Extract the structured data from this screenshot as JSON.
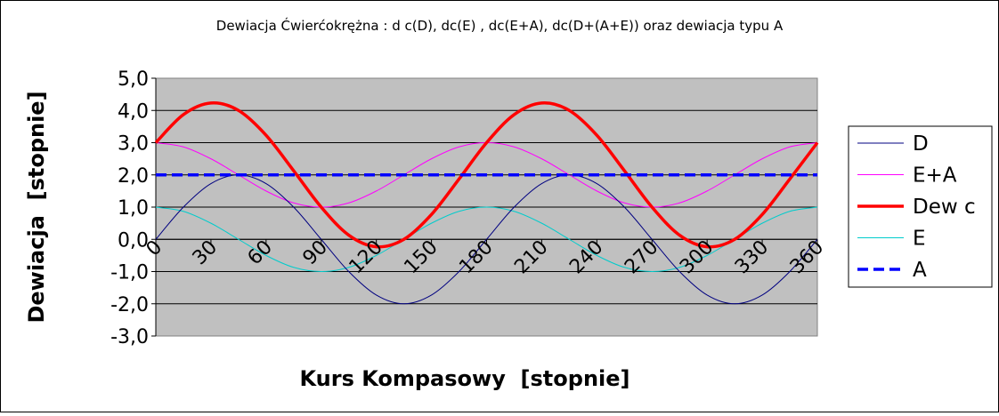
{
  "chart_data": {
    "type": "line",
    "title": "Dewiacja Ćwierćokrężna : d c(D), dc(E) , dc(E+A), dc(D+(A+E)) oraz dewiacja typu A",
    "xlabel": "Kurs Kompasowy  [stopnie]",
    "ylabel": "Dewiacja  [stopnie]",
    "xlim": [
      0,
      360
    ],
    "ylim": [
      -3.0,
      5.0
    ],
    "x_ticks": [
      "0",
      "30",
      "60",
      "90",
      "120",
      "150",
      "180",
      "210",
      "240",
      "270",
      "300",
      "330",
      "360"
    ],
    "y_ticks": [
      "5,0",
      "4,0",
      "3,0",
      "2,0",
      "1,0",
      "0,0",
      "-1,0",
      "-2,0",
      "-3,0"
    ],
    "grid": "horizontal",
    "legend_position": "right",
    "x": [
      0,
      15,
      30,
      45,
      60,
      75,
      90,
      105,
      120,
      135,
      150,
      165,
      180,
      195,
      210,
      225,
      240,
      255,
      270,
      285,
      300,
      315,
      330,
      345,
      360
    ],
    "series": [
      {
        "name": "D",
        "color": "#000080",
        "width": "thin",
        "style": "solid",
        "values": [
          0.0,
          1.0,
          1.73,
          2.0,
          1.73,
          1.0,
          0.0,
          -1.0,
          -1.73,
          -2.0,
          -1.73,
          -1.0,
          0.0,
          1.0,
          1.73,
          2.0,
          1.73,
          1.0,
          0.0,
          -1.0,
          -1.73,
          -2.0,
          -1.73,
          -1.0,
          0.0
        ]
      },
      {
        "name": "E+A",
        "color": "#ff00ff",
        "width": "thin",
        "style": "solid",
        "values": [
          3.0,
          2.87,
          2.5,
          2.0,
          1.5,
          1.13,
          1.0,
          1.13,
          1.5,
          2.0,
          2.5,
          2.87,
          3.0,
          2.87,
          2.5,
          2.0,
          1.5,
          1.13,
          1.0,
          1.13,
          1.5,
          2.0,
          2.5,
          2.87,
          3.0
        ]
      },
      {
        "name": "Dew c",
        "color": "#ff0000",
        "width": "thick",
        "style": "solid",
        "values": [
          3.0,
          3.87,
          4.23,
          4.0,
          3.23,
          2.13,
          1.0,
          0.13,
          -0.23,
          0.0,
          0.77,
          1.87,
          3.0,
          3.87,
          4.23,
          4.0,
          3.23,
          2.13,
          1.0,
          0.13,
          -0.23,
          0.0,
          0.77,
          1.87,
          3.0
        ]
      },
      {
        "name": "E",
        "color": "#00cccc",
        "width": "thin",
        "style": "solid",
        "values": [
          1.0,
          0.87,
          0.5,
          0.0,
          -0.5,
          -0.87,
          -1.0,
          -0.87,
          -0.5,
          0.0,
          0.5,
          0.87,
          1.0,
          0.87,
          0.5,
          0.0,
          -0.5,
          -0.87,
          -1.0,
          -0.87,
          -0.5,
          0.0,
          0.5,
          0.87,
          1.0
        ]
      },
      {
        "name": "A",
        "color": "#0000ff",
        "width": "thick",
        "style": "dashed",
        "values": [
          2.0,
          2.0,
          2.0,
          2.0,
          2.0,
          2.0,
          2.0,
          2.0,
          2.0,
          2.0,
          2.0,
          2.0,
          2.0,
          2.0,
          2.0,
          2.0,
          2.0,
          2.0,
          2.0,
          2.0,
          2.0,
          2.0,
          2.0,
          2.0,
          2.0
        ]
      }
    ],
    "plot_background": "#c0c0c0"
  }
}
